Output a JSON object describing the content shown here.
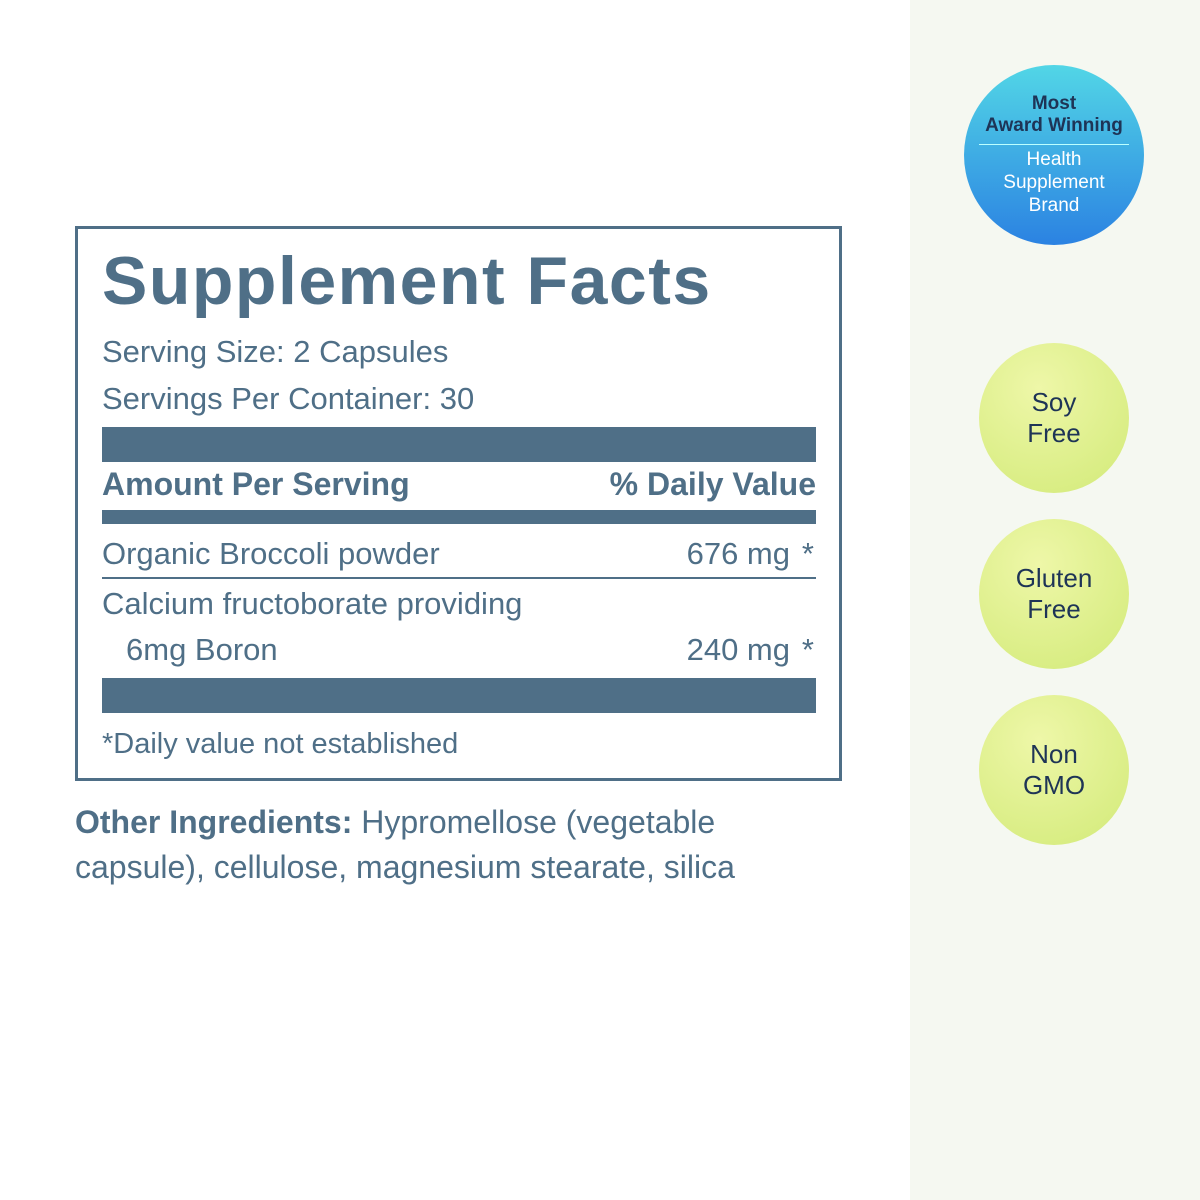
{
  "facts": {
    "title": "Supplement Facts",
    "serving_size": "Serving Size: 2 Capsules",
    "servings_per_container": "Servings Per Container: 30",
    "header": [
      "Amount Per Serving",
      "% Daily Value"
    ],
    "rows": [
      {
        "name": [
          "Organic Broccoli powder"
        ],
        "amount": "676 mg",
        "dv": "*"
      },
      {
        "name": [
          "Calcium fructoborate providing",
          "6mg Boron"
        ],
        "amount": "240 mg",
        "dv": "*"
      }
    ],
    "footnote": "*Daily value not established"
  },
  "other_ingredients": {
    "label": "Other Ingredients:",
    "text": "Hypromellose (vegetable capsule), cellulose, magnesium stearate, silica"
  },
  "badges": [
    {
      "lines": [
        "Most",
        "Award Winning"
      ],
      "lines2": [
        "Health",
        "Supplement",
        "Brand"
      ]
    },
    {
      "lines": [
        "Soy",
        "Free"
      ]
    },
    {
      "lines": [
        "Gluten",
        "Free"
      ]
    },
    {
      "lines": [
        "Non",
        "GMO"
      ]
    }
  ]
}
